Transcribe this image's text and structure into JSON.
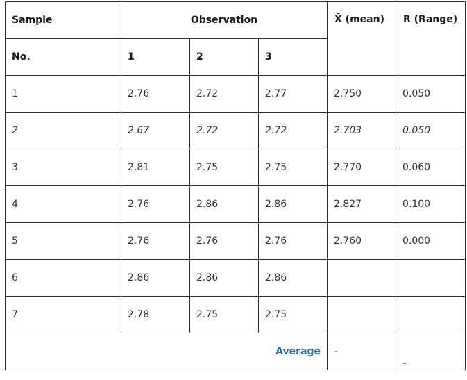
{
  "header": {
    "sample": "Sample",
    "observation": "Observation",
    "mean": "X̄ (mean)",
    "range": "R (Range)",
    "no": "No.",
    "obs_cols": [
      "1",
      "2",
      "3"
    ]
  },
  "rows": [
    {
      "no": "1",
      "o1": "2.76",
      "o2": "2.72",
      "o3": "2.77",
      "mean": "2.750",
      "range": "0.050",
      "italic": false
    },
    {
      "no": "2",
      "o1": "2.67",
      "o2": "2.72",
      "o3": "2.72",
      "mean": "2.703",
      "range": "0.050",
      "italic": true
    },
    {
      "no": "3",
      "o1": "2.81",
      "o2": "2.75",
      "o3": "2.75",
      "mean": "2.770",
      "range": "0.060",
      "italic": false
    },
    {
      "no": "4",
      "o1": "2.76",
      "o2": "2.86",
      "o3": "2.86",
      "mean": "2.827",
      "range": "0.100",
      "italic": false
    },
    {
      "no": "5",
      "o1": "2.76",
      "o2": "2.76",
      "o3": "2.76",
      "mean": "2.760",
      "range": "0.000",
      "italic": false
    },
    {
      "no": "6",
      "o1": "2.86",
      "o2": "2.86",
      "o3": "2.86",
      "mean": "",
      "range": "",
      "italic": false
    },
    {
      "no": "7",
      "o1": "2.78",
      "o2": "2.75",
      "o3": "2.75",
      "mean": "",
      "range": "",
      "italic": false
    }
  ],
  "average": {
    "label": "Average",
    "mean": "-",
    "range": "-"
  }
}
